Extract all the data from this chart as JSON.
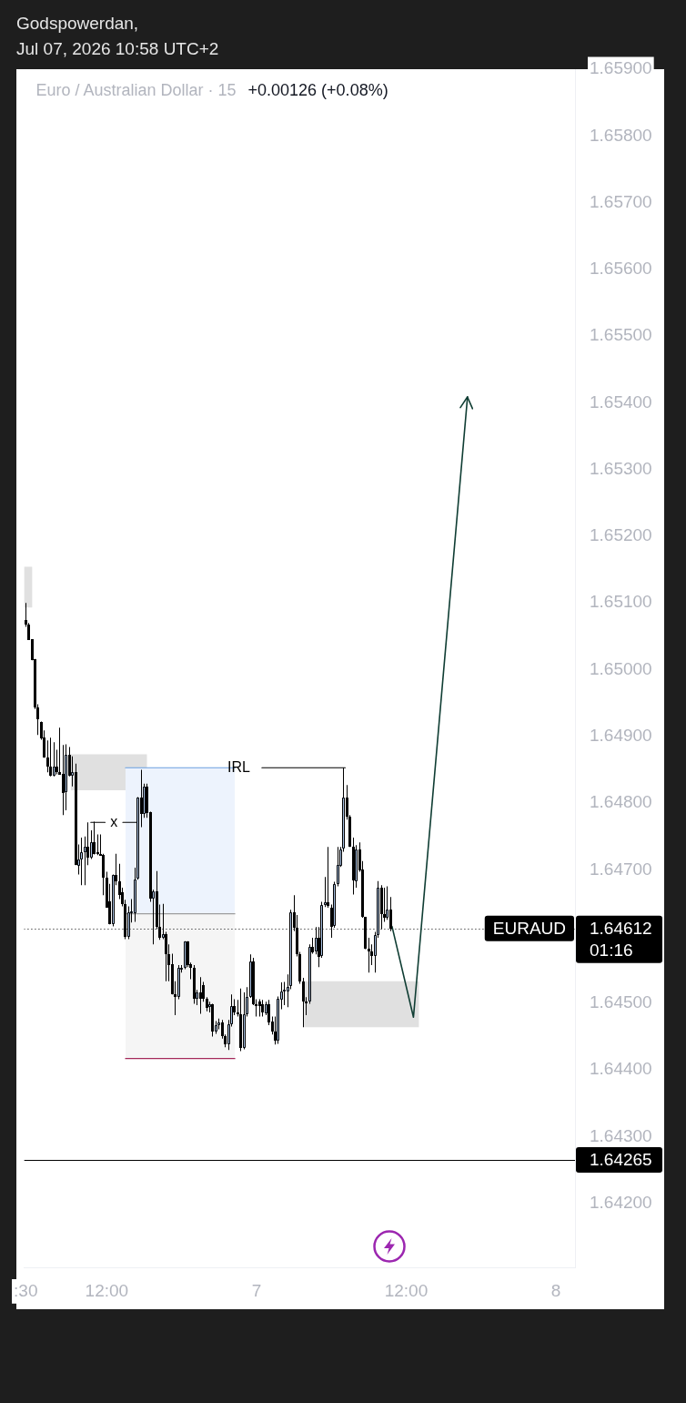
{
  "chart_data": {
    "type": "candlestick",
    "title": "Euro / Australian Dollar · 15",
    "subtitle": "+0.00126 (+0.08%)",
    "annotations": [
      "Godspowerdan,",
      "Jul 07, 2026 10:58 UTC+2",
      "1.64612",
      "1.64265",
      "01:16"
    ],
    "xlim": [
      "2026-07-06T05:22",
      "2026-07-08T01:32"
    ],
    "xticks": [
      {
        "value": "2026-07-06T05:30",
        "label": ":30"
      },
      {
        "value": "2026-07-06T12:00",
        "label": "12:00"
      },
      {
        "value": "2026-07-07",
        "label": "7"
      },
      {
        "value": "2026-07-07T12:00",
        "label": "12:00"
      },
      {
        "value": "2026-07-08",
        "label": "8"
      }
    ],
    "ylim": [
      1.64104,
      1.659
    ],
    "yticks": [
      {
        "value": 1.642,
        "label": "1.64200"
      },
      {
        "value": 1.643,
        "label": "1.64300"
      },
      {
        "value": 1.644,
        "label": "1.64400"
      },
      {
        "value": 1.645,
        "label": "1.64500"
      },
      {
        "value": 1.647,
        "label": "1.64700"
      },
      {
        "value": 1.648,
        "label": "1.64800"
      },
      {
        "value": 1.649,
        "label": "1.64900"
      },
      {
        "value": 1.65,
        "label": "1.65000"
      },
      {
        "value": 1.651,
        "label": "1.65100"
      },
      {
        "value": 1.652,
        "label": "1.65200"
      },
      {
        "value": 1.653,
        "label": "1.65300"
      },
      {
        "value": 1.654,
        "label": "1.65400"
      },
      {
        "value": 1.655,
        "label": "1.65500"
      },
      {
        "value": 1.656,
        "label": "1.65600"
      },
      {
        "value": 1.657,
        "label": "1.65700"
      },
      {
        "value": 1.658,
        "label": "1.65800"
      },
      {
        "value": 1.659,
        "label": "1.65900"
      }
    ],
    "ref_lines": [
      {
        "axis": "y",
        "value": 1.64612,
        "label": "EURAUD",
        "color": "#000000",
        "line_style": "dotted"
      },
      {
        "axis": "y",
        "value": 1.64265,
        "color": "#000000",
        "line_style": "solid"
      }
    ],
    "series": [
      {
        "type": "line",
        "x": [
          "2026-07-06T05:22",
          "2026-07-06T06:01"
        ],
        "values": [
          null,
          null
        ],
        "lower": [
          1.65093,
          1.65093
        ],
        "upper": [
          1.65154,
          1.65154
        ],
        "color": "#e0e0e0"
      },
      {
        "type": "line",
        "x": [
          "2026-07-06T09:07",
          "2026-07-06T15:13"
        ],
        "values": [
          null,
          null
        ],
        "lower": [
          1.64819,
          1.64819
        ],
        "upper": [
          1.64873,
          1.64873
        ],
        "color": "#e0e0e0"
      },
      {
        "type": "line",
        "x": [
          "2026-07-06T13:30",
          "2026-07-06T22:16"
        ],
        "values": [
          null,
          null
        ],
        "lower": [
          1.64634,
          1.64634
        ],
        "upper": [
          1.64853,
          1.64853
        ],
        "color": "#edf3fd"
      },
      {
        "type": "line",
        "x": [
          "2026-07-06T13:30",
          "2026-07-06T22:16"
        ],
        "values": [
          null,
          null
        ],
        "lower": [
          1.64417,
          1.64417
        ],
        "upper": [
          1.64634,
          1.64634
        ],
        "color": "#f5f5f5"
      },
      {
        "type": "line",
        "x": [
          "2026-07-07T03:49",
          "2026-07-07T13:01"
        ],
        "values": [
          null,
          null
        ],
        "lower": [
          1.64464,
          1.64464
        ],
        "upper": [
          1.64533,
          1.64533
        ],
        "color": "#e0e0e0"
      },
      {
        "x": [
          "2026-07-06T05:30",
          "2026-07-06T05:45",
          "2026-07-06T06:00",
          "2026-07-06T06:15",
          "2026-07-06T06:30",
          "2026-07-06T06:45",
          "2026-07-06T07:00",
          "2026-07-06T07:15",
          "2026-07-06T07:30",
          "2026-07-06T07:45",
          "2026-07-06T08:00",
          "2026-07-06T08:15",
          "2026-07-06T08:30",
          "2026-07-06T08:45",
          "2026-07-06T09:00",
          "2026-07-06T09:15",
          "2026-07-06T09:30",
          "2026-07-06T09:45",
          "2026-07-06T10:00",
          "2026-07-06T10:15",
          "2026-07-06T10:30",
          "2026-07-06T10:45",
          "2026-07-06T11:00",
          "2026-07-06T11:15",
          "2026-07-06T11:30",
          "2026-07-06T11:45",
          "2026-07-06T12:00",
          "2026-07-06T12:15",
          "2026-07-06T12:30",
          "2026-07-06T12:45",
          "2026-07-06T13:00",
          "2026-07-06T13:15",
          "2026-07-06T13:30",
          "2026-07-06T13:45",
          "2026-07-06T14:00",
          "2026-07-06T14:15",
          "2026-07-06T14:30",
          "2026-07-06T14:45",
          "2026-07-06T15:00",
          "2026-07-06T15:15",
          "2026-07-06T15:30",
          "2026-07-06T15:45",
          "2026-07-06T16:00",
          "2026-07-06T16:15",
          "2026-07-06T16:30",
          "2026-07-06T16:45",
          "2026-07-06T17:00",
          "2026-07-06T17:15",
          "2026-07-06T17:30",
          "2026-07-06T17:45",
          "2026-07-06T18:00",
          "2026-07-06T18:15",
          "2026-07-06T18:30",
          "2026-07-06T18:45",
          "2026-07-06T19:00",
          "2026-07-06T19:15",
          "2026-07-06T19:30",
          "2026-07-06T19:45",
          "2026-07-06T20:00",
          "2026-07-06T20:15",
          "2026-07-06T20:30",
          "2026-07-06T20:45",
          "2026-07-06T21:00",
          "2026-07-06T21:15",
          "2026-07-06T21:30",
          "2026-07-06T21:45",
          "2026-07-06T22:00",
          "2026-07-06T22:15",
          "2026-07-06T22:30",
          "2026-07-06T22:45",
          "2026-07-06T23:00",
          "2026-07-06T23:15",
          "2026-07-06T23:30",
          "2026-07-06T23:45",
          "2026-07-07T00:00",
          "2026-07-07T00:15",
          "2026-07-07T00:30",
          "2026-07-07T00:45",
          "2026-07-07T01:00",
          "2026-07-07T01:15",
          "2026-07-07T01:30",
          "2026-07-07T01:45",
          "2026-07-07T02:00",
          "2026-07-07T02:15",
          "2026-07-07T02:30",
          "2026-07-07T02:45",
          "2026-07-07T03:00",
          "2026-07-07T03:15",
          "2026-07-07T03:30",
          "2026-07-07T03:45",
          "2026-07-07T04:00",
          "2026-07-07T04:15",
          "2026-07-07T04:30",
          "2026-07-07T04:45",
          "2026-07-07T05:00",
          "2026-07-07T05:15",
          "2026-07-07T05:30",
          "2026-07-07T05:45",
          "2026-07-07T06:00",
          "2026-07-07T06:15",
          "2026-07-07T06:30",
          "2026-07-07T06:45",
          "2026-07-07T07:00",
          "2026-07-07T07:15",
          "2026-07-07T07:30",
          "2026-07-07T07:45",
          "2026-07-07T08:00",
          "2026-07-07T08:15",
          "2026-07-07T08:30",
          "2026-07-07T08:45",
          "2026-07-07T09:00",
          "2026-07-07T09:15",
          "2026-07-07T09:30",
          "2026-07-07T09:45",
          "2026-07-07T10:00",
          "2026-07-07T10:15",
          "2026-07-07T10:30",
          "2026-07-07T10:45"
        ],
        "ohlc": [
          [
            1.65075,
            1.651,
            1.65064,
            1.65068
          ],
          [
            1.65068,
            1.6507,
            1.65045,
            1.65045
          ],
          [
            1.65045,
            1.65045,
            1.65014,
            1.65014
          ],
          [
            1.65016,
            1.65016,
            1.64941,
            1.64943
          ],
          [
            1.64943,
            1.64948,
            1.64902,
            1.64925
          ],
          [
            1.64922,
            1.64922,
            1.64895,
            1.64898
          ],
          [
            1.64898,
            1.64909,
            1.64868,
            1.64868
          ],
          [
            1.64868,
            1.64894,
            1.64846,
            1.64854
          ],
          [
            1.64855,
            1.64898,
            1.6484,
            1.64842
          ],
          [
            1.64842,
            1.64891,
            1.6484,
            1.64855
          ],
          [
            1.64855,
            1.6488,
            1.64843,
            1.64847
          ],
          [
            1.64847,
            1.64913,
            1.64843,
            1.64843
          ],
          [
            1.64844,
            1.64887,
            1.64782,
            1.64816
          ],
          [
            1.64816,
            1.64888,
            1.64789,
            1.64872
          ],
          [
            1.64872,
            1.64884,
            1.6484,
            1.6484
          ],
          [
            1.6484,
            1.6487,
            1.64825,
            1.64846
          ],
          [
            1.64846,
            1.64859,
            1.64707,
            1.64707
          ],
          [
            1.64707,
            1.64738,
            1.64693,
            1.64716
          ],
          [
            1.64716,
            1.64748,
            1.64677,
            1.64727
          ],
          [
            1.64727,
            1.6475,
            1.64677,
            1.64735
          ],
          [
            1.64735,
            1.64771,
            1.64707,
            1.64718
          ],
          [
            1.64719,
            1.64759,
            1.64716,
            1.64742
          ],
          [
            1.64742,
            1.64772,
            1.64723,
            1.64724
          ],
          [
            1.64726,
            1.64753,
            1.64722,
            1.64724
          ],
          [
            1.64724,
            1.64753,
            1.64722,
            1.64722
          ],
          [
            1.64722,
            1.64724,
            1.64662,
            1.64688
          ],
          [
            1.64688,
            1.64697,
            1.64643,
            1.64643
          ],
          [
            1.64652,
            1.64679,
            1.64618,
            1.64618
          ],
          [
            1.64618,
            1.64693,
            1.64615,
            1.64692
          ],
          [
            1.64692,
            1.64724,
            1.64677,
            1.64683
          ],
          [
            1.64683,
            1.64709,
            1.64656,
            1.64663
          ],
          [
            1.64666,
            1.64673,
            1.64645,
            1.64648
          ],
          [
            1.64648,
            1.64655,
            1.64596,
            1.64599
          ],
          [
            1.64599,
            1.64645,
            1.64596,
            1.64636
          ],
          [
            1.64634,
            1.64656,
            1.64621,
            1.64637
          ],
          [
            1.64636,
            1.64703,
            1.64622,
            1.64686
          ],
          [
            1.64686,
            1.64809,
            1.64685,
            1.64808
          ],
          [
            1.64808,
            1.6485,
            1.64764,
            1.64784
          ],
          [
            1.64784,
            1.64829,
            1.64778,
            1.64825
          ],
          [
            1.64825,
            1.64829,
            1.64778,
            1.64786
          ],
          [
            1.64786,
            1.64787,
            1.64652,
            1.64656
          ],
          [
            1.64656,
            1.6467,
            1.64588,
            1.64667
          ],
          [
            1.64667,
            1.64698,
            1.64611,
            1.64614
          ],
          [
            1.64614,
            1.64648,
            1.64595,
            1.64598
          ],
          [
            1.64598,
            1.64649,
            1.64596,
            1.64604
          ],
          [
            1.64604,
            1.64607,
            1.64533,
            1.64574
          ],
          [
            1.64574,
            1.64588,
            1.64533,
            1.64558
          ],
          [
            1.64558,
            1.64574,
            1.64513,
            1.64513
          ],
          [
            1.64513,
            1.64533,
            1.64482,
            1.64509
          ],
          [
            1.64509,
            1.64557,
            1.64506,
            1.64553
          ],
          [
            1.6455,
            1.64557,
            1.64546,
            1.64553
          ],
          [
            1.64553,
            1.64593,
            1.64551,
            1.64592
          ],
          [
            1.64592,
            1.64593,
            1.64554,
            1.64557
          ],
          [
            1.64558,
            1.64561,
            1.64536,
            1.64553
          ],
          [
            1.64553,
            1.64557,
            1.64499,
            1.64506
          ],
          [
            1.64506,
            1.6452,
            1.64497,
            1.64516
          ],
          [
            1.64516,
            1.64539,
            1.64484,
            1.64506
          ],
          [
            1.64527,
            1.64532,
            1.64502,
            1.64506
          ],
          [
            1.64506,
            1.64509,
            1.64488,
            1.64492
          ],
          [
            1.64494,
            1.64502,
            1.64486,
            1.64498
          ],
          [
            1.64498,
            1.64499,
            1.6445,
            1.64457
          ],
          [
            1.64457,
            1.64473,
            1.64454,
            1.64467
          ],
          [
            1.64467,
            1.64477,
            1.64461,
            1.64471
          ],
          [
            1.64471,
            1.64475,
            1.64447,
            1.6445
          ],
          [
            1.6445,
            1.64453,
            1.64434,
            1.64438
          ],
          [
            1.64438,
            1.64475,
            1.6443,
            1.64468
          ],
          [
            1.64468,
            1.64513,
            1.64465,
            1.64495
          ],
          [
            1.64495,
            1.64506,
            1.64482,
            1.64486
          ],
          [
            1.64486,
            1.64505,
            1.6448,
            1.64484
          ],
          [
            1.64484,
            1.64522,
            1.64428,
            1.64434
          ],
          [
            1.64434,
            1.64516,
            1.64431,
            1.64484
          ],
          [
            1.64484,
            1.64524,
            1.6448,
            1.6451
          ],
          [
            1.6451,
            1.64573,
            1.64508,
            1.64563
          ],
          [
            1.64563,
            1.64568,
            1.64497,
            1.64499
          ],
          [
            1.64499,
            1.64506,
            1.6448,
            1.64498
          ],
          [
            1.64502,
            1.64506,
            1.6448,
            1.64495
          ],
          [
            1.64498,
            1.64505,
            1.6448,
            1.64486
          ],
          [
            1.64486,
            1.64502,
            1.64482,
            1.64499
          ],
          [
            1.64499,
            1.64505,
            1.64467,
            1.64472
          ],
          [
            1.64472,
            1.6448,
            1.64453,
            1.64457
          ],
          [
            1.64457,
            1.6448,
            1.64438,
            1.64443
          ],
          [
            1.64443,
            1.6451,
            1.64439,
            1.64506
          ],
          [
            1.64506,
            1.64531,
            1.64491,
            1.64518
          ],
          [
            1.64518,
            1.64532,
            1.64497,
            1.6452
          ],
          [
            1.64518,
            1.64543,
            1.64494,
            1.64525
          ],
          [
            1.64525,
            1.6464,
            1.64521,
            1.64636
          ],
          [
            1.64636,
            1.64662,
            1.64608,
            1.64613
          ],
          [
            1.64613,
            1.64632,
            1.6457,
            1.64574
          ],
          [
            1.64574,
            1.64577,
            1.64529,
            1.64533
          ],
          [
            1.64533,
            1.64538,
            1.64464,
            1.64503
          ],
          [
            1.64503,
            1.64509,
            1.64482,
            1.64502
          ],
          [
            1.64503,
            1.64588,
            1.64499,
            1.64585
          ],
          [
            1.64585,
            1.64598,
            1.64574,
            1.64577
          ],
          [
            1.64577,
            1.64614,
            1.64573,
            1.64598
          ],
          [
            1.64598,
            1.64614,
            1.64554,
            1.6457
          ],
          [
            1.6457,
            1.64652,
            1.64568,
            1.64647
          ],
          [
            1.64647,
            1.64689,
            1.64644,
            1.64651
          ],
          [
            1.64651,
            1.64734,
            1.64643,
            1.64645
          ],
          [
            1.64643,
            1.64648,
            1.64598,
            1.64615
          ],
          [
            1.64615,
            1.64682,
            1.64613,
            1.64678
          ],
          [
            1.64678,
            1.64734,
            1.64675,
            1.64707
          ],
          [
            1.64707,
            1.64734,
            1.64704,
            1.64731
          ],
          [
            1.64731,
            1.64853,
            1.64727,
            1.64808
          ],
          [
            1.64808,
            1.64827,
            1.64775,
            1.64779
          ],
          [
            1.64779,
            1.64782,
            1.64734,
            1.64734
          ],
          [
            1.64734,
            1.64748,
            1.64663,
            1.64683
          ],
          [
            1.64683,
            1.64737,
            1.64673,
            1.64731
          ],
          [
            1.64731,
            1.64741,
            1.64697,
            1.647
          ],
          [
            1.647,
            1.64713,
            1.64628,
            1.64629
          ],
          [
            1.64629,
            1.64629,
            1.64581,
            1.64581
          ],
          [
            1.64581,
            1.64598,
            1.64546,
            1.64577
          ],
          [
            1.64577,
            1.64588,
            1.64557,
            1.6457
          ],
          [
            1.6457,
            1.64607,
            1.64546,
            1.64602
          ],
          [
            1.64602,
            1.64683,
            1.64598,
            1.64673
          ],
          [
            1.64673,
            1.64677,
            1.64611,
            1.64634
          ],
          [
            1.64634,
            1.64673,
            1.64622,
            1.64629
          ],
          [
            1.64629,
            1.64675,
            1.64625,
            1.64641
          ],
          [
            1.64641,
            1.64659,
            1.64608,
            1.64612
          ]
        ]
      },
      {
        "type": "line",
        "x": [
          "2026-07-06T13:30",
          "2026-07-06T22:16"
        ],
        "values": [
          1.64853,
          1.64853
        ],
        "color": "#6a9ee0"
      },
      {
        "type": "line",
        "x": [
          "2026-07-06T13:30",
          "2026-07-06T22:16"
        ],
        "values": [
          1.64634,
          1.64634
        ],
        "color": "#9e9e9e"
      },
      {
        "type": "line",
        "x": [
          "2026-07-06T13:30",
          "2026-07-06T22:16"
        ],
        "values": [
          1.64417,
          1.64417
        ],
        "color": "#a3295a"
      },
      {
        "type": "line",
        "name": "IRL",
        "x": [
          "2026-07-07T00:26",
          "2026-07-07T07:07"
        ],
        "values": [
          1.64853,
          1.64853
        ],
        "color": "#000000"
      },
      {
        "type": "line",
        "name": "x",
        "x": [
          "2026-07-06T10:43",
          "2026-07-06T11:52",
          "2026-07-06T12:34",
          "2026-07-06T13:17",
          "2026-07-06T14:23"
        ],
        "values": [
          1.64771,
          1.64771,
          null,
          1.64771,
          1.64771
        ],
        "color": "#000000"
      },
      {
        "type": "line",
        "x": [
          "2026-07-07T10:52",
          "2026-07-07T12:35",
          "2026-07-07T16:55"
        ],
        "values": [
          1.64615,
          1.64479,
          1.65409
        ],
        "color": "#0f3d33"
      }
    ]
  }
}
